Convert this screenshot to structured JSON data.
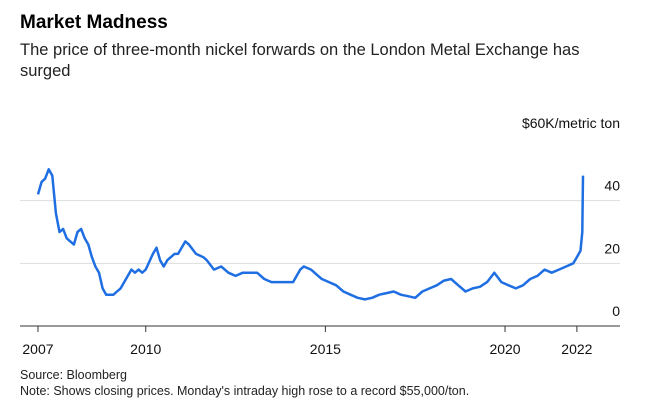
{
  "chart_data": {
    "type": "line",
    "title": "Market Madness",
    "subtitle": "The price of three-month nickel forwards on the London Metal Exchange has surged",
    "source": "Source: Bloomberg",
    "note": "Note: Shows closing prices. Monday's intraday high rose to a record $55,000/ton.",
    "xlim": [
      2006.5,
      2023.2
    ],
    "xticks": [
      2007,
      2010,
      2015,
      2020,
      2022
    ],
    "ylim": [
      0,
      60
    ],
    "yticks": [
      0,
      20,
      40,
      {
        "value": 60,
        "label": "$60K/metric ton"
      }
    ],
    "grid": true,
    "series": [
      {
        "name": "Nickel",
        "color": "#1f6fe3",
        "x": [
          2007.0,
          2007.1,
          2007.2,
          2007.3,
          2007.4,
          2007.5,
          2007.6,
          2007.7,
          2007.8,
          2007.9,
          2008.0,
          2008.1,
          2008.2,
          2008.3,
          2008.4,
          2008.5,
          2008.6,
          2008.7,
          2008.8,
          2008.9,
          2009.0,
          2009.1,
          2009.2,
          2009.3,
          2009.4,
          2009.5,
          2009.6,
          2009.7,
          2009.8,
          2009.9,
          2010.0,
          2010.2,
          2010.3,
          2010.4,
          2010.5,
          2010.6,
          2010.8,
          2010.9,
          2011.1,
          2011.2,
          2011.4,
          2011.6,
          2011.7,
          2011.9,
          2012.1,
          2012.3,
          2012.5,
          2012.7,
          2012.9,
          2013.1,
          2013.3,
          2013.5,
          2013.7,
          2013.9,
          2014.1,
          2014.3,
          2014.4,
          2014.6,
          2014.8,
          2014.9,
          2015.1,
          2015.3,
          2015.5,
          2015.7,
          2015.9,
          2016.1,
          2016.3,
          2016.5,
          2016.7,
          2016.9,
          2017.1,
          2017.3,
          2017.5,
          2017.7,
          2017.9,
          2018.1,
          2018.3,
          2018.5,
          2018.7,
          2018.9,
          2019.1,
          2019.3,
          2019.5,
          2019.7,
          2019.9,
          2020.1,
          2020.3,
          2020.5,
          2020.7,
          2020.9,
          2021.1,
          2021.3,
          2021.5,
          2021.7,
          2021.9,
          2022.0,
          2022.1,
          2022.15,
          2022.17
        ],
        "values": [
          42,
          46,
          47,
          50,
          48,
          36,
          30,
          31,
          28,
          27,
          26,
          30,
          31,
          28,
          26,
          22,
          19,
          17,
          12,
          10,
          10,
          10,
          11,
          12,
          14,
          16,
          18,
          17,
          18,
          17,
          18,
          23,
          25,
          21,
          19,
          21,
          23,
          23,
          27,
          26,
          23,
          22,
          21,
          18,
          19,
          17,
          16,
          17,
          17,
          17,
          15,
          14,
          14,
          14,
          14,
          18,
          19,
          18,
          16,
          15,
          14,
          13,
          11,
          10,
          9,
          8.5,
          9,
          10,
          10.5,
          11,
          10,
          9.5,
          9,
          11,
          12,
          13,
          14.5,
          15,
          13,
          11,
          12,
          12.5,
          14,
          17,
          14,
          13,
          12,
          13,
          15,
          16,
          18,
          17,
          18,
          19,
          20,
          22,
          24,
          30,
          48
        ]
      }
    ]
  }
}
